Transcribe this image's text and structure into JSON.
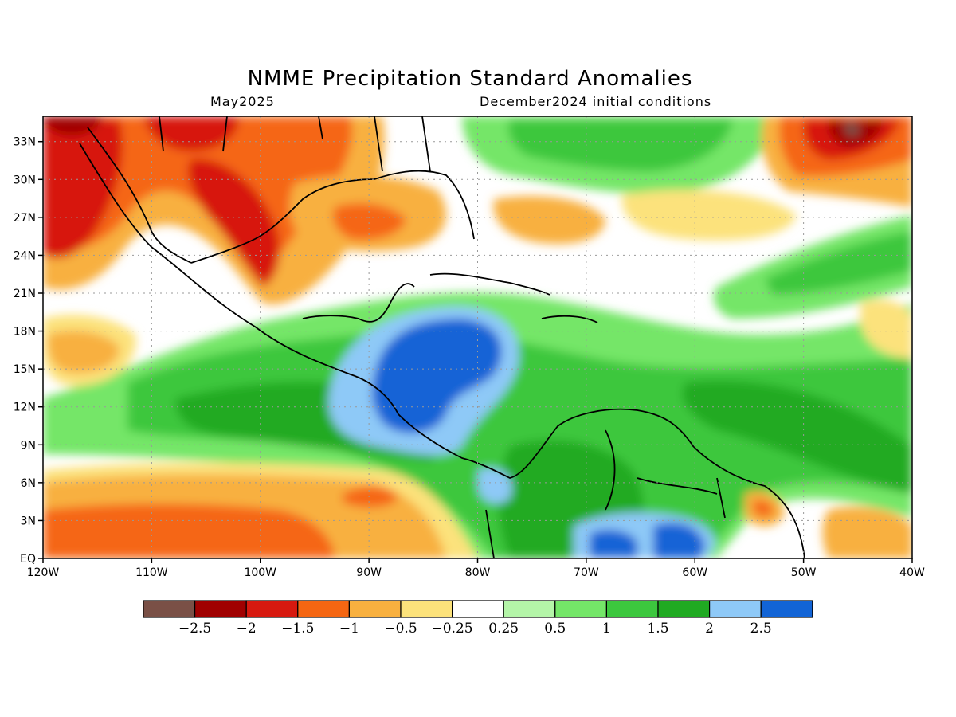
{
  "title": "NMME Precipitation Standard Anomalies",
  "valid_month": "May2025",
  "init_label": "December2024 initial conditions",
  "map": {
    "lon_ticks": [
      "120W",
      "110W",
      "100W",
      "90W",
      "80W",
      "70W",
      "60W",
      "50W",
      "40W"
    ],
    "lat_ticks": [
      "EQ",
      "3N",
      "6N",
      "9N",
      "12N",
      "15N",
      "18N",
      "21N",
      "24N",
      "27N",
      "30N",
      "33N"
    ],
    "lon_range": [
      -120,
      -40
    ],
    "lat_range": [
      0,
      35
    ]
  },
  "colorbar": {
    "colors": [
      "#7a5046",
      "#a00000",
      "#d7190f",
      "#f56612",
      "#f8b03f",
      "#fce27b",
      "#ffffff",
      "#b4f5a8",
      "#74e668",
      "#3cc73e",
      "#20aa22",
      "#8ec9f7",
      "#1264d6"
    ],
    "labels": [
      "−2.5",
      "−2",
      "−1.5",
      "−1",
      "−0.5",
      "−0.25",
      "0.25",
      "0.5",
      "1",
      "1.5",
      "2",
      "2.5"
    ]
  },
  "palette": {
    "dry_extreme": "#7a5046",
    "dry_strong": "#a00000",
    "dry": "#d7190f",
    "dry_mod": "#f56612",
    "dry_light": "#f8b03f",
    "dry_slight": "#fce27b",
    "neutral": "#ffffff",
    "wet_slight": "#b4f5a8",
    "wet_light": "#74e668",
    "wet_mod": "#3cc73e",
    "wet": "#20aa22",
    "wet_strong": "#8ec9f7",
    "wet_extreme": "#1264d6"
  }
}
